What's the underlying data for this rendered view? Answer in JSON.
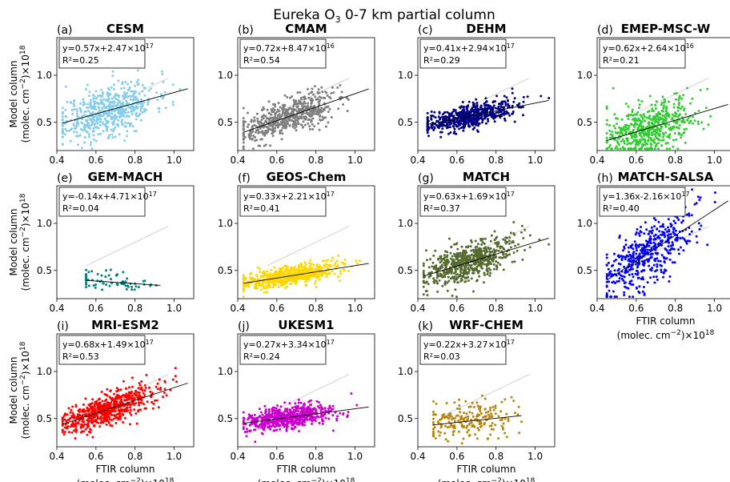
{
  "figure": {
    "title_text": "Eureka O",
    "title_sub": "3",
    "title_rest": " 0-7 km partial column",
    "ylabel_line1": "Model column",
    "ylabel_line2": "(molec. cm",
    "xlabel_line1": "FTIR column",
    "xlabel_line2": "(molec. cm",
    "unit_exp": "−2",
    "unit_tail": ")×10",
    "unit_pow": "18"
  },
  "chart_data": [
    {
      "type": "scatter",
      "panel": "(a)",
      "title": "CESM",
      "color": "#87ceeb",
      "xlim": [
        0.4,
        1.1
      ],
      "ylim": [
        0.2,
        1.4
      ],
      "xticks": [
        "0.4",
        "0.6",
        "0.8",
        "1.0"
      ],
      "yticks": [
        "0.5",
        "1.0"
      ],
      "fit": {
        "slope": 0.57,
        "intercept": 0.247
      },
      "eq_main": "y=0.57x+2.47×10",
      "eq_exp": "17",
      "r2": "R²=0.25",
      "xrange": [
        0.43,
        1.07
      ],
      "seed": 11,
      "n": 600,
      "spread": 0.13
    },
    {
      "type": "scatter",
      "panel": "(b)",
      "title": "CMAM",
      "color": "#808080",
      "xlim": [
        0.4,
        1.1
      ],
      "ylim": [
        0.2,
        1.4
      ],
      "xticks": [
        "0.4",
        "0.6",
        "0.8",
        "1.0"
      ],
      "yticks": [
        "0.5",
        "1.0"
      ],
      "fit": {
        "slope": 0.72,
        "intercept": 0.0847
      },
      "eq_main": "y=0.72x+8.47×10",
      "eq_exp": "16",
      "r2": "R²=0.54",
      "xrange": [
        0.43,
        1.07
      ],
      "seed": 22,
      "n": 600,
      "spread": 0.09
    },
    {
      "type": "scatter",
      "panel": "(c)",
      "title": "DEHM",
      "color": "#000080",
      "xlim": [
        0.4,
        1.1
      ],
      "ylim": [
        0.2,
        1.4
      ],
      "xticks": [
        "0.4",
        "0.6",
        "0.8",
        "1.0"
      ],
      "yticks": [
        "0.5",
        "1.0"
      ],
      "fit": {
        "slope": 0.41,
        "intercept": 0.294
      },
      "eq_main": "y=0.41x+2.94×10",
      "eq_exp": "17",
      "r2": "R²=0.29",
      "xrange": [
        0.45,
        1.07
      ],
      "seed": 33,
      "n": 600,
      "spread": 0.06
    },
    {
      "type": "scatter",
      "panel": "(d)",
      "title": "EMEP-MSC-W",
      "color": "#32cd32",
      "xlim": [
        0.4,
        1.1
      ],
      "ylim": [
        0.2,
        1.4
      ],
      "xticks": [
        "0.4",
        "0.6",
        "0.8",
        "1.0"
      ],
      "yticks": [
        "0.5",
        "1.0"
      ],
      "fit": {
        "slope": 0.62,
        "intercept": 0.0264
      },
      "eq_main": "y=0.62x+2.64×10",
      "eq_exp": "16",
      "r2": "R²=0.21",
      "xrange": [
        0.45,
        1.07
      ],
      "seed": 44,
      "n": 550,
      "spread": 0.14
    },
    {
      "type": "scatter",
      "panel": "(e)",
      "title": "GEM-MACH",
      "color": "#008080",
      "xlim": [
        0.4,
        1.1
      ],
      "ylim": [
        0.2,
        1.4
      ],
      "xticks": [
        "0.4",
        "0.6",
        "0.8",
        "1.0"
      ],
      "yticks": [
        "0.5",
        "1.0"
      ],
      "fit": {
        "slope": -0.14,
        "intercept": 0.471
      },
      "eq_main": "y=-0.14x+4.71×10",
      "eq_exp": "17",
      "r2": "R²=0.04",
      "xrange": [
        0.55,
        0.93
      ],
      "seed": 55,
      "n": 70,
      "spread": 0.05
    },
    {
      "type": "scatter",
      "panel": "(f)",
      "title": "GEOS-Chem",
      "color": "#ffd700",
      "xlim": [
        0.4,
        1.1
      ],
      "ylim": [
        0.2,
        1.4
      ],
      "xticks": [
        "0.4",
        "0.6",
        "0.8",
        "1.0"
      ],
      "yticks": [
        "0.5",
        "1.0"
      ],
      "fit": {
        "slope": 0.33,
        "intercept": 0.221
      },
      "eq_main": "y=0.33x+2.21×10",
      "eq_exp": "17",
      "r2": "R²=0.41",
      "xrange": [
        0.43,
        1.07
      ],
      "seed": 66,
      "n": 650,
      "spread": 0.05
    },
    {
      "type": "scatter",
      "panel": "(g)",
      "title": "MATCH",
      "color": "#556b2f",
      "xlim": [
        0.4,
        1.1
      ],
      "ylim": [
        0.2,
        1.4
      ],
      "xticks": [
        "0.4",
        "0.6",
        "0.8",
        "1.0"
      ],
      "yticks": [
        "0.5",
        "1.0"
      ],
      "fit": {
        "slope": 0.63,
        "intercept": 0.169
      },
      "eq_main": "y=0.63x+1.69×10",
      "eq_exp": "17",
      "r2": "R²=0.37",
      "xrange": [
        0.43,
        1.07
      ],
      "seed": 77,
      "n": 650,
      "spread": 0.1
    },
    {
      "type": "scatter",
      "panel": "(h)",
      "title": "MATCH-SALSA",
      "color": "#0000ff",
      "xlim": [
        0.4,
        1.1
      ],
      "ylim": [
        0.2,
        1.4
      ],
      "xticks": [
        "0.4",
        "0.6",
        "0.8",
        "1.0"
      ],
      "yticks": [
        "0.5",
        "1.0"
      ],
      "fit": {
        "slope": 1.36,
        "intercept": -0.216
      },
      "eq_main": "y=1.36x-2.16×10",
      "eq_exp": "17",
      "r2": "R²=0.40",
      "xrange": [
        0.45,
        1.07
      ],
      "seed": 88,
      "n": 500,
      "spread": 0.17
    },
    {
      "type": "scatter",
      "panel": "(i)",
      "title": "MRI-ESM2",
      "color": "#ff0000",
      "xlim": [
        0.4,
        1.1
      ],
      "ylim": [
        0.2,
        1.4
      ],
      "xticks": [
        "0.4",
        "0.6",
        "0.8",
        "1.0"
      ],
      "yticks": [
        "0.5",
        "1.0"
      ],
      "fit": {
        "slope": 0.68,
        "intercept": 0.149
      },
      "eq_main": "y=0.68x+1.49×10",
      "eq_exp": "17",
      "r2": "R²=0.53",
      "xrange": [
        0.43,
        1.07
      ],
      "seed": 99,
      "n": 650,
      "spread": 0.08
    },
    {
      "type": "scatter",
      "panel": "(j)",
      "title": "UKESM1",
      "color": "#cc00cc",
      "xlim": [
        0.4,
        1.1
      ],
      "ylim": [
        0.2,
        1.4
      ],
      "xticks": [
        "0.4",
        "0.6",
        "0.8",
        "1.0"
      ],
      "yticks": [
        "0.5",
        "1.0"
      ],
      "fit": {
        "slope": 0.27,
        "intercept": 0.334
      },
      "eq_main": "y=0.27x+3.34×10",
      "eq_exp": "17",
      "r2": "R²=0.24",
      "xrange": [
        0.43,
        1.07
      ],
      "seed": 111,
      "n": 650,
      "spread": 0.06
    },
    {
      "type": "scatter",
      "panel": "(k)",
      "title": "WRF-CHEM",
      "color": "#b8860b",
      "xlim": [
        0.4,
        1.1
      ],
      "ylim": [
        0.2,
        1.4
      ],
      "xticks": [
        "0.4",
        "0.6",
        "0.8",
        "1.0"
      ],
      "yticks": [
        "0.5",
        "1.0"
      ],
      "fit": {
        "slope": 0.22,
        "intercept": 0.327
      },
      "eq_main": "y=0.22x+3.27×10",
      "eq_exp": "17",
      "r2": "R²=0.03",
      "xrange": [
        0.48,
        0.93
      ],
      "seed": 122,
      "n": 220,
      "spread": 0.1
    }
  ]
}
